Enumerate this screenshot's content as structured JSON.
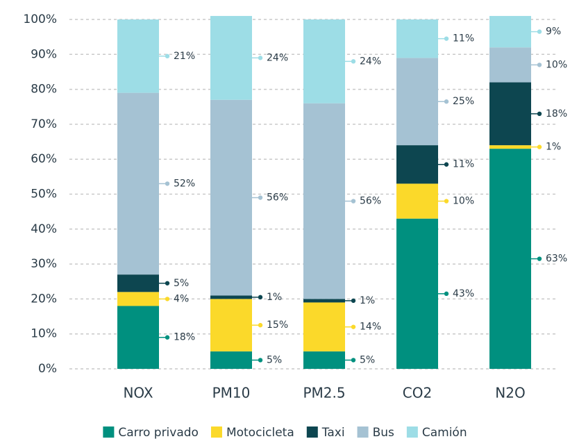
{
  "chart_data": {
    "type": "stacked_bar",
    "categories": [
      "NOX",
      "PM10",
      "PM2.5",
      "CO2",
      "N2O"
    ],
    "series": [
      {
        "name": "Carro privado",
        "color": "#00907f",
        "values": [
          18,
          5,
          5,
          43,
          63
        ],
        "value_labels": [
          "18%",
          "5%",
          "5%",
          "43%",
          "63%"
        ]
      },
      {
        "name": "Motocicleta",
        "color": "#fbd92a",
        "values": [
          4,
          15,
          14,
          10,
          1
        ],
        "value_labels": [
          "4%",
          "15%",
          "14%",
          "10%",
          "1%"
        ]
      },
      {
        "name": "Taxi",
        "color": "#0d4650",
        "values": [
          5,
          1,
          1,
          11,
          18
        ],
        "value_labels": [
          "5%",
          "1%",
          "1%",
          "11%",
          "18%"
        ]
      },
      {
        "name": "Bus",
        "color": "#a5c2d3",
        "values": [
          52,
          56,
          56,
          25,
          10
        ],
        "value_labels": [
          "52%",
          "56%",
          "56%",
          "25%",
          "10%"
        ]
      },
      {
        "name": "Camión",
        "color": "#9ddde6",
        "values": [
          21,
          24,
          24,
          11,
          9
        ],
        "value_labels": [
          "21%",
          "24%",
          "24%",
          "11%",
          "9%"
        ]
      }
    ],
    "ylim": [
      0,
      100
    ],
    "yticks": [
      {
        "value": 0,
        "label": "0%"
      },
      {
        "value": 10,
        "label": "10%"
      },
      {
        "value": 20,
        "label": "20%"
      },
      {
        "value": 30,
        "label": "30%"
      },
      {
        "value": 40,
        "label": "40%"
      },
      {
        "value": 50,
        "label": "50%"
      },
      {
        "value": 60,
        "label": "60%"
      },
      {
        "value": 70,
        "label": "70%"
      },
      {
        "value": 80,
        "label": "80%"
      },
      {
        "value": 90,
        "label": "90%"
      },
      {
        "value": 100,
        "label": "100%"
      }
    ],
    "grid": true,
    "legend": "bottom"
  }
}
